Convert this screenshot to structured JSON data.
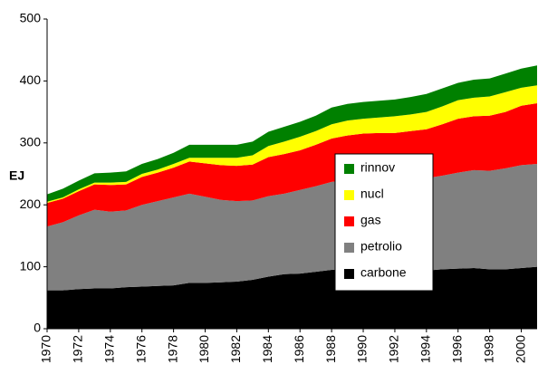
{
  "chart_data": {
    "type": "stacked-area",
    "y_label": "EJ",
    "x": [
      1970,
      1971,
      1972,
      1973,
      1974,
      1975,
      1976,
      1977,
      1978,
      1979,
      1980,
      1981,
      1982,
      1983,
      1984,
      1985,
      1986,
      1987,
      1988,
      1989,
      1990,
      1991,
      1992,
      1993,
      1994,
      1995,
      1996,
      1997,
      1998,
      1999,
      2000,
      2001
    ],
    "xlim": [
      1970,
      2001
    ],
    "xticks": [
      1970,
      1972,
      1974,
      1976,
      1978,
      1980,
      1982,
      1984,
      1986,
      1988,
      1990,
      1992,
      1994,
      1996,
      1998,
      2000
    ],
    "ylim": [
      0,
      500
    ],
    "yticks": [
      0,
      100,
      200,
      300,
      400,
      500
    ],
    "grid": false,
    "legend_position": "center-right",
    "series": [
      {
        "name": "carbone",
        "color": "#000000",
        "values": [
          62,
          62,
          64,
          65,
          65,
          67,
          68,
          69,
          70,
          74,
          74,
          75,
          76,
          79,
          84,
          88,
          89,
          92,
          95,
          96,
          95,
          94,
          93,
          93,
          94,
          96,
          97,
          98,
          96,
          96,
          98,
          100
        ]
      },
      {
        "name": "petrolio",
        "color": "#808080",
        "values": [
          103,
          110,
          119,
          127,
          124,
          124,
          132,
          137,
          142,
          144,
          139,
          133,
          130,
          128,
          130,
          130,
          135,
          138,
          142,
          144,
          145,
          147,
          147,
          148,
          149,
          151,
          155,
          158,
          159,
          163,
          166,
          166
        ]
      },
      {
        "name": "gas",
        "color": "#ff0000",
        "values": [
          38,
          38,
          39,
          41,
          43,
          42,
          45,
          46,
          48,
          52,
          54,
          56,
          57,
          58,
          63,
          64,
          64,
          67,
          70,
          72,
          75,
          75,
          76,
          78,
          79,
          83,
          87,
          87,
          89,
          91,
          96,
          98
        ]
      },
      {
        "name": "nucl",
        "color": "#ffff00",
        "values": [
          2,
          2,
          3,
          3,
          4,
          4,
          5,
          5,
          6,
          6,
          9,
          12,
          13,
          15,
          18,
          20,
          22,
          22,
          23,
          24,
          24,
          25,
          27,
          27,
          28,
          29,
          30,
          30,
          31,
          32,
          29,
          29
        ]
      },
      {
        "name": "rinnov",
        "color": "#008000",
        "values": [
          12,
          14,
          14,
          15,
          16,
          17,
          16,
          17,
          18,
          21,
          21,
          21,
          21,
          22,
          23,
          24,
          24,
          25,
          27,
          27,
          27,
          27,
          27,
          28,
          29,
          29,
          28,
          29,
          29,
          30,
          31,
          32
        ]
      }
    ]
  }
}
